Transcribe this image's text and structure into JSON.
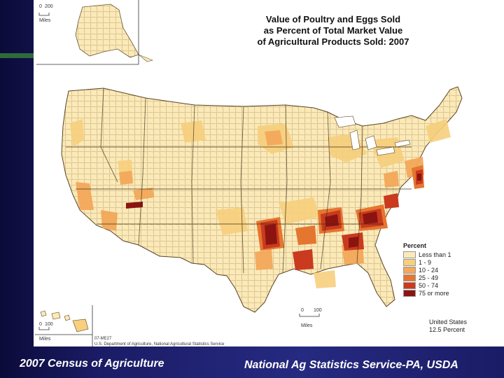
{
  "title": {
    "line1": "Value of Poultry and Eggs Sold",
    "line2": "as Percent of Total Market Value",
    "line3": "of Agricultural Products Sold:  2007"
  },
  "legend": {
    "title": "Percent",
    "items": [
      {
        "label": "Less than 1",
        "color": "#fbeab8"
      },
      {
        "label": "1 - 9",
        "color": "#f7cf7d"
      },
      {
        "label": "10 - 24",
        "color": "#f3a85a"
      },
      {
        "label": "25 - 49",
        "color": "#e5762f"
      },
      {
        "label": "50 - 74",
        "color": "#c93a1f"
      },
      {
        "label": "75 or more",
        "color": "#8c1410"
      }
    ]
  },
  "note": {
    "line1": "United States",
    "line2": "12.5 Percent"
  },
  "scales": {
    "alaska_zero": "0",
    "alaska_value": "200",
    "alaska_unit": "Miles",
    "main_zero": "0",
    "main_value": "100",
    "main_unit": "Miles",
    "hawaii_zero": "0",
    "hawaii_value": "100",
    "hawaii_unit": "Miles"
  },
  "credit": {
    "line1": "07-ME27",
    "line2": "U.S. Department of Agriculture, National Agricultural Statistics Service"
  },
  "footer": {
    "left": "2007 Census of Agriculture",
    "right": "National Ag Statistics Service-PA, USDA"
  },
  "colors": {
    "background": "#1d1d63",
    "panel": "#ffffff",
    "text_footer": "#ffffff"
  }
}
